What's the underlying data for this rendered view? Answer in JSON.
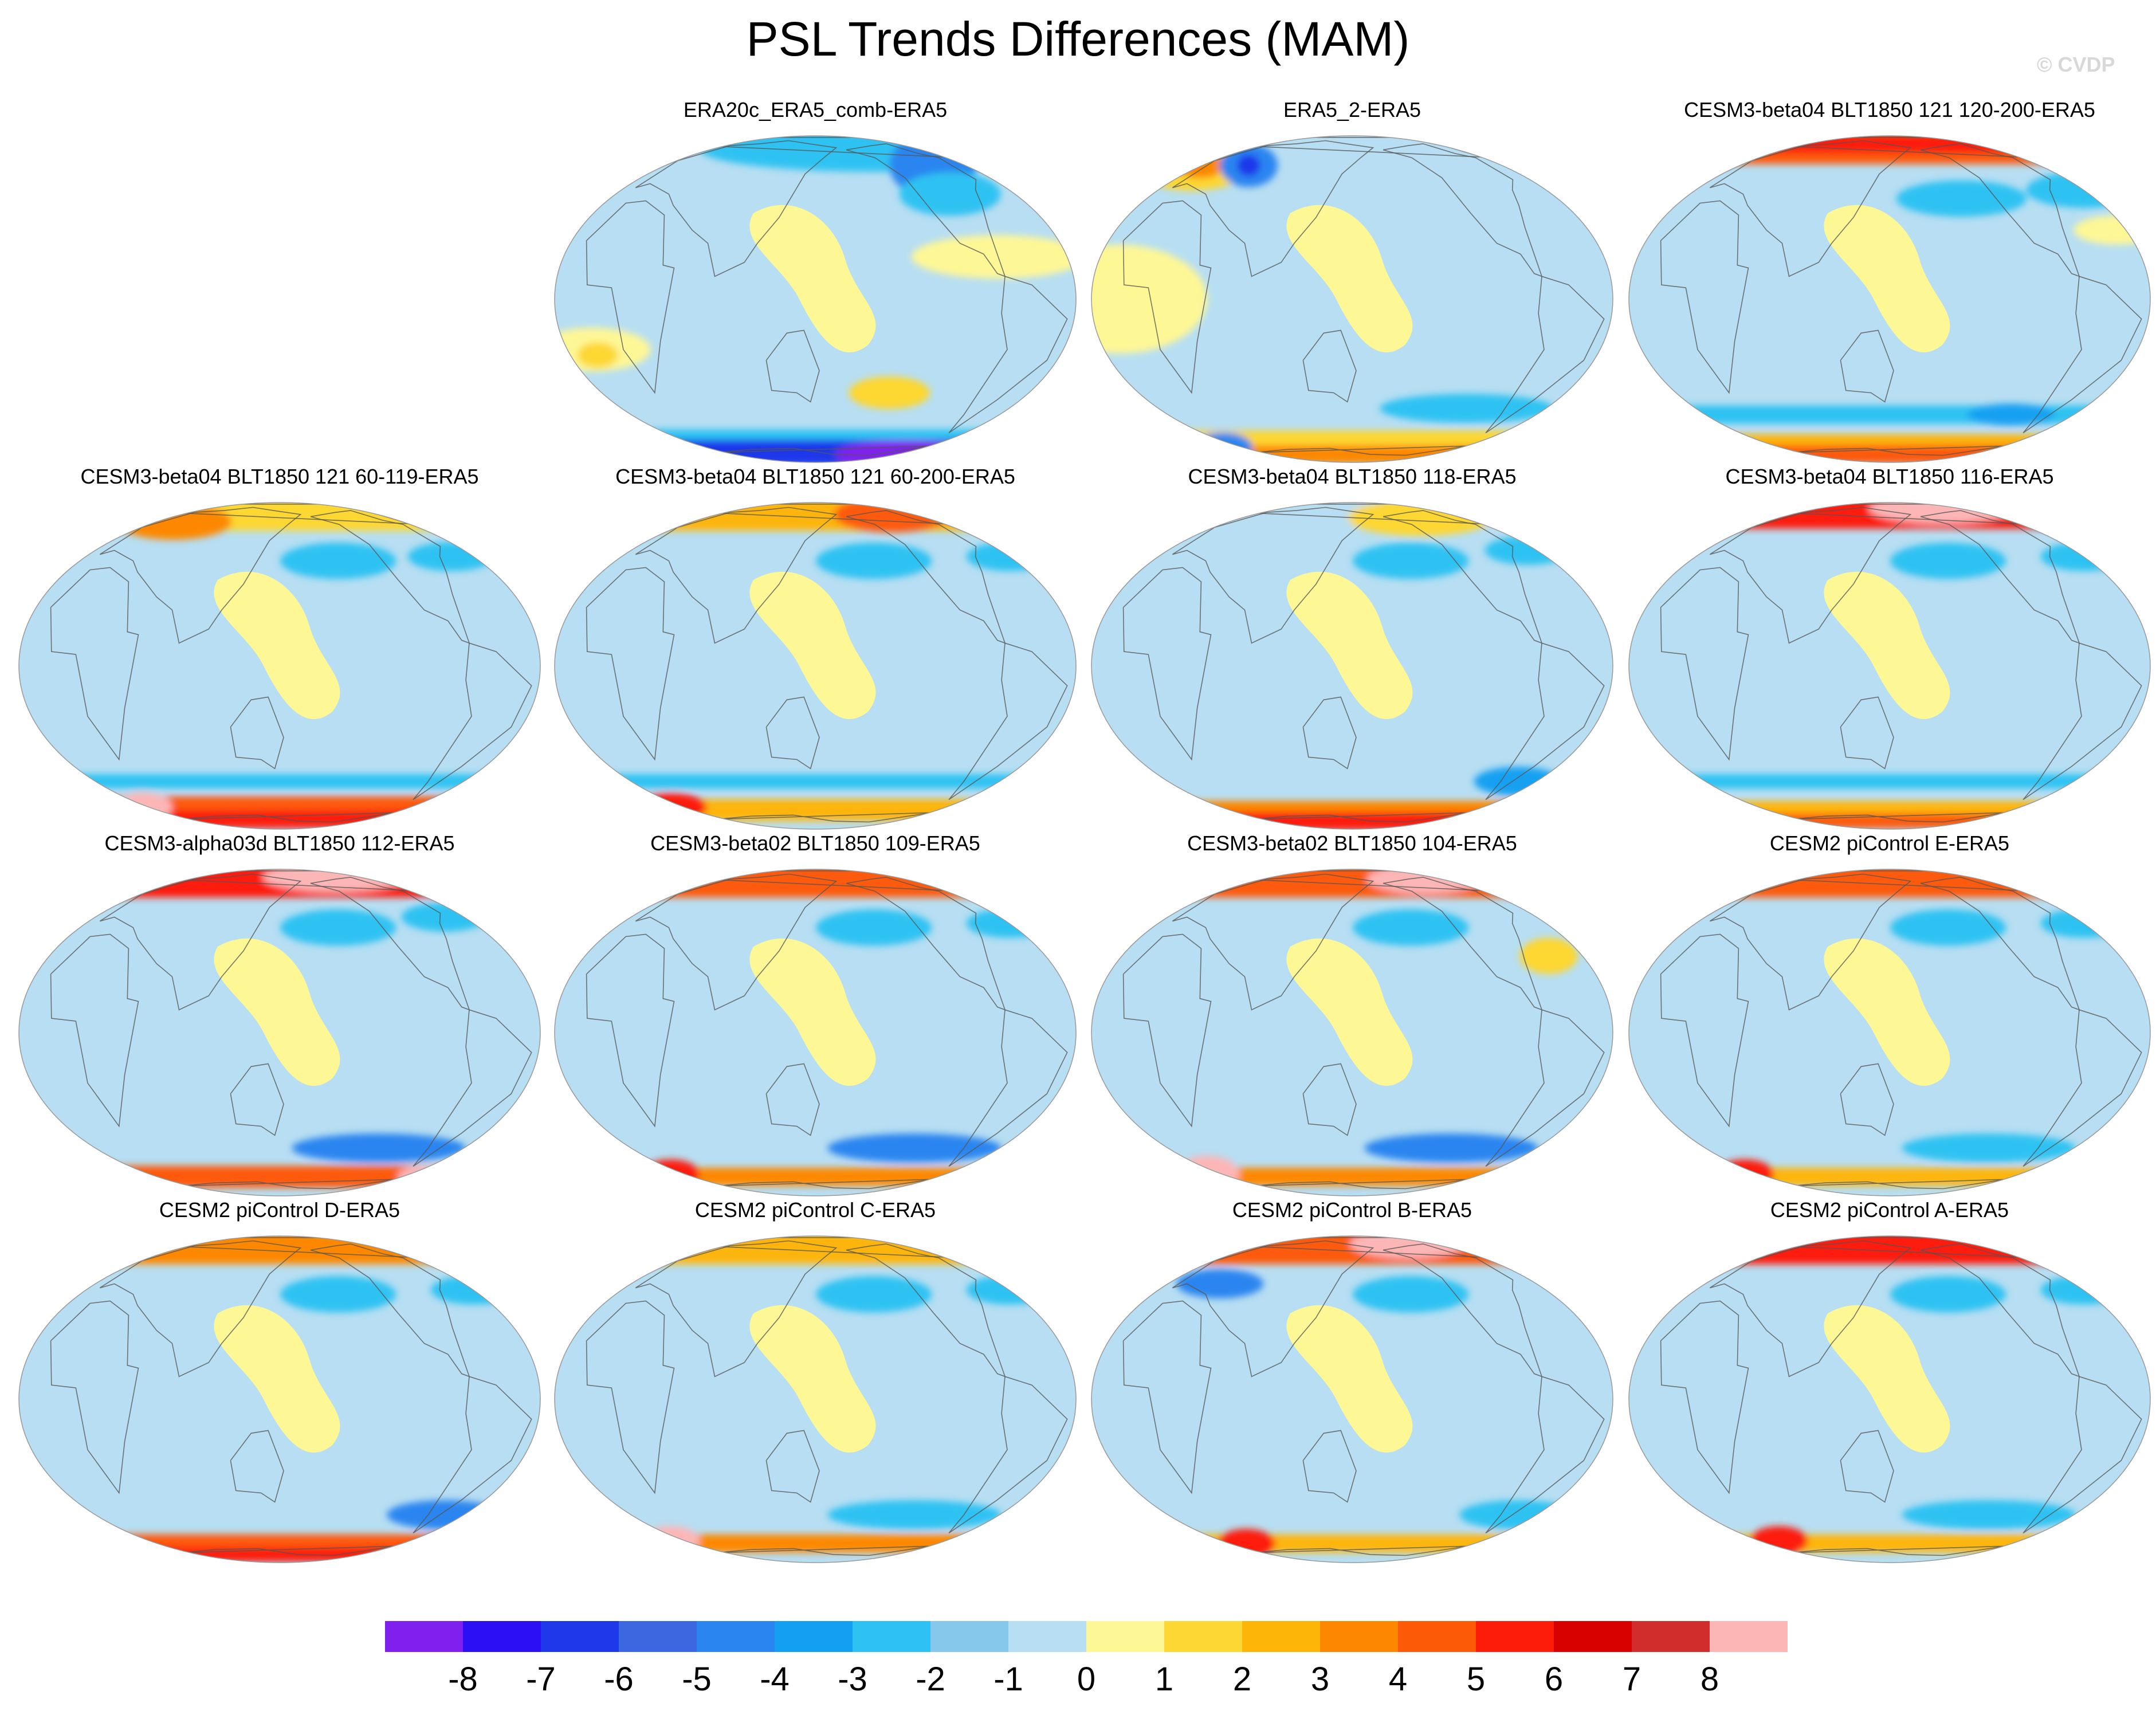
{
  "title": "PSL Trends Differences (MAM)",
  "watermark": "© CVDP",
  "colorbar": {
    "colors": [
      "#7f20ee",
      "#2b0ff5",
      "#1f38ea",
      "#3b67e1",
      "#2a85f0",
      "#14a0f2",
      "#2ec2f2",
      "#86c8ec",
      "#b7def2",
      "#fef795",
      "#fdd733",
      "#fdb508",
      "#fd8800",
      "#fd5a07",
      "#fd1c0a",
      "#d90000",
      "#d22d2d",
      "#fdb6b6"
    ],
    "labels": [
      "-8",
      "-7",
      "-6",
      "-5",
      "-4",
      "-3",
      "-2",
      "-1",
      "0",
      "1",
      "2",
      "3",
      "4",
      "5",
      "6",
      "7",
      "8"
    ]
  },
  "panels": [
    {
      "title": "ERA20c_ERA5_comb-ERA5",
      "features": [
        {
          "kind": "blob",
          "lon": -130,
          "lat": 66,
          "rx": 120,
          "ry": 12,
          "color": "#2ec2f2"
        },
        {
          "kind": "blob",
          "lon": -85,
          "lat": 55,
          "rx": 30,
          "ry": 18,
          "color": "#2a85f0"
        },
        {
          "kind": "blob",
          "lon": -95,
          "lat": 40,
          "rx": 35,
          "ry": 12,
          "color": "#2ec2f2"
        },
        {
          "kind": "blob",
          "lon": -80,
          "lat": 15,
          "rx": 60,
          "ry": 12,
          "color": "#fef795"
        },
        {
          "kind": "blob",
          "lon": -10,
          "lat": -18,
          "rx": 40,
          "ry": 12,
          "color": "#fef795"
        },
        {
          "kind": "blob",
          "lon": -8,
          "lat": -20,
          "rx": 14,
          "ry": 7,
          "color": "#fdd733"
        },
        {
          "kind": "blob",
          "lon": -150,
          "lat": -35,
          "rx": 28,
          "ry": 9,
          "color": "#fdd733"
        },
        {
          "kind": "band",
          "lat": -58,
          "h": 9,
          "color": "#2ec2f2"
        },
        {
          "kind": "band",
          "lat": -70,
          "h": 14,
          "color": "#1f38ea"
        },
        {
          "kind": "blob",
          "lon": -60,
          "lat": -72,
          "rx": 50,
          "ry": 8,
          "color": "#7f20ee"
        }
      ]
    },
    {
      "title": "ERA5_2-ERA5",
      "features": [
        {
          "kind": "blob",
          "lon": -20,
          "lat": 55,
          "rx": 40,
          "ry": 14,
          "color": "#fdd733"
        },
        {
          "kind": "blob",
          "lon": -15,
          "lat": 56,
          "rx": 18,
          "ry": 8,
          "color": "#fd8800"
        },
        {
          "kind": "blob",
          "lon": 40,
          "lat": 55,
          "rx": 20,
          "ry": 12,
          "color": "#2a85f0"
        },
        {
          "kind": "blob",
          "lon": 40,
          "lat": 55,
          "rx": 8,
          "ry": 6,
          "color": "#1f38ea"
        },
        {
          "kind": "blob",
          "lon": -10,
          "lat": 0,
          "rx": 60,
          "ry": 30,
          "color": "#fef795"
        },
        {
          "kind": "blob",
          "lon": -110,
          "lat": -42,
          "rx": 60,
          "ry": 8,
          "color": "#2ec2f2"
        },
        {
          "kind": "band",
          "lat": -62,
          "h": 14,
          "color": "#fdd733"
        },
        {
          "kind": "band",
          "lat": -72,
          "h": 10,
          "color": "#fd8800"
        },
        {
          "kind": "blob",
          "lon": -20,
          "lat": -65,
          "rx": 20,
          "ry": 8,
          "color": "#2a85f0"
        }
      ]
    },
    {
      "title": "CESM3-beta04 BLT1850 121 120-200-ERA5",
      "features": [
        {
          "kind": "band",
          "lat": 68,
          "h": 18,
          "color": "#fd5a07"
        },
        {
          "kind": "band",
          "lat": 72,
          "h": 10,
          "color": "#fd1c0a"
        },
        {
          "kind": "blob",
          "lon": -150,
          "lat": 38,
          "rx": 45,
          "ry": 10,
          "color": "#2ec2f2"
        },
        {
          "kind": "blob",
          "lon": -40,
          "lat": 42,
          "rx": 40,
          "ry": 10,
          "color": "#2ec2f2"
        },
        {
          "kind": "blob",
          "lon": -40,
          "lat": 25,
          "rx": 30,
          "ry": 8,
          "color": "#fef795"
        },
        {
          "kind": "band",
          "lat": -45,
          "h": 10,
          "color": "#2ec2f2"
        },
        {
          "kind": "blob",
          "lon": -100,
          "lat": -45,
          "rx": 30,
          "ry": 6,
          "color": "#14a0f2"
        },
        {
          "kind": "band",
          "lat": -62,
          "h": 10,
          "color": "#fdb508"
        },
        {
          "kind": "band",
          "lat": -72,
          "h": 10,
          "color": "#fd5a07"
        }
      ]
    },
    {
      "title": "CESM3-beta04 BLT1850 121 60-119-ERA5",
      "features": [
        {
          "kind": "band",
          "lat": 68,
          "h": 18,
          "color": "#fdd733"
        },
        {
          "kind": "blob",
          "lon": 20,
          "lat": 62,
          "rx": 40,
          "ry": 10,
          "color": "#fd8800"
        },
        {
          "kind": "blob",
          "lon": -160,
          "lat": 40,
          "rx": 40,
          "ry": 10,
          "color": "#2ec2f2"
        },
        {
          "kind": "blob",
          "lon": -60,
          "lat": 42,
          "rx": 30,
          "ry": 8,
          "color": "#2ec2f2"
        },
        {
          "kind": "band",
          "lat": -45,
          "h": 8,
          "color": "#2ec2f2"
        },
        {
          "kind": "band",
          "lat": -60,
          "h": 12,
          "color": "#fd5a07"
        },
        {
          "kind": "band",
          "lat": -70,
          "h": 10,
          "color": "#fd1c0a"
        },
        {
          "kind": "blob",
          "lon": -10,
          "lat": -60,
          "rx": 20,
          "ry": 8,
          "color": "#fdb6b6"
        }
      ]
    },
    {
      "title": "CESM3-beta04 BLT1850 121 60-200-ERA5",
      "features": [
        {
          "kind": "band",
          "lat": 68,
          "h": 18,
          "color": "#fdb508"
        },
        {
          "kind": "blob",
          "lon": -100,
          "lat": 68,
          "rx": 40,
          "ry": 10,
          "color": "#fd5a07"
        },
        {
          "kind": "blob",
          "lon": -160,
          "lat": 40,
          "rx": 40,
          "ry": 10,
          "color": "#2ec2f2"
        },
        {
          "kind": "blob",
          "lon": -40,
          "lat": 42,
          "rx": 30,
          "ry": 8,
          "color": "#2ec2f2"
        },
        {
          "kind": "band",
          "lat": -45,
          "h": 8,
          "color": "#2ec2f2"
        },
        {
          "kind": "band",
          "lat": -62,
          "h": 12,
          "color": "#fdb508"
        },
        {
          "kind": "blob",
          "lon": -20,
          "lat": -60,
          "rx": 25,
          "ry": 8,
          "color": "#fd1c0a"
        }
      ]
    },
    {
      "title": "CESM3-beta04 BLT1850 118-ERA5",
      "features": [
        {
          "kind": "band",
          "lat": 68,
          "h": 14,
          "color": "#b7def2"
        },
        {
          "kind": "blob",
          "lon": -120,
          "lat": 65,
          "rx": 50,
          "ry": 10,
          "color": "#fdd733"
        },
        {
          "kind": "blob",
          "lon": -160,
          "lat": 40,
          "rx": 40,
          "ry": 10,
          "color": "#2ec2f2"
        },
        {
          "kind": "blob",
          "lon": -50,
          "lat": 45,
          "rx": 30,
          "ry": 8,
          "color": "#2ec2f2"
        },
        {
          "kind": "blob",
          "lon": -60,
          "lat": -45,
          "rx": 30,
          "ry": 8,
          "color": "#14a0f2"
        },
        {
          "kind": "band",
          "lat": -62,
          "h": 10,
          "color": "#fd8800"
        },
        {
          "kind": "band",
          "lat": -72,
          "h": 10,
          "color": "#fd1c0a"
        }
      ]
    },
    {
      "title": "CESM3-beta04 BLT1850 116-ERA5",
      "features": [
        {
          "kind": "band",
          "lat": 70,
          "h": 18,
          "color": "#fd1c0a"
        },
        {
          "kind": "blob",
          "lon": -120,
          "lat": 74,
          "rx": 50,
          "ry": 8,
          "color": "#fdb6b6"
        },
        {
          "kind": "blob",
          "lon": -160,
          "lat": 40,
          "rx": 40,
          "ry": 10,
          "color": "#2ec2f2"
        },
        {
          "kind": "blob",
          "lon": -40,
          "lat": 42,
          "rx": 30,
          "ry": 8,
          "color": "#2ec2f2"
        },
        {
          "kind": "band",
          "lat": -45,
          "h": 8,
          "color": "#2ec2f2"
        },
        {
          "kind": "band",
          "lat": -62,
          "h": 10,
          "color": "#fdb508"
        },
        {
          "kind": "band",
          "lat": -72,
          "h": 8,
          "color": "#fd5a07"
        }
      ]
    },
    {
      "title": "CESM3-alpha03d BLT1850 112-ERA5",
      "features": [
        {
          "kind": "band",
          "lat": 68,
          "h": 18,
          "color": "#fd1c0a"
        },
        {
          "kind": "blob",
          "lon": -120,
          "lat": 72,
          "rx": 50,
          "ry": 8,
          "color": "#fdb6b6"
        },
        {
          "kind": "blob",
          "lon": -160,
          "lat": 40,
          "rx": 40,
          "ry": 10,
          "color": "#2ec2f2"
        },
        {
          "kind": "blob",
          "lon": -60,
          "lat": 45,
          "rx": 30,
          "ry": 8,
          "color": "#2ec2f2"
        },
        {
          "kind": "blob",
          "lon": -120,
          "lat": -45,
          "rx": 60,
          "ry": 8,
          "color": "#2a85f0"
        },
        {
          "kind": "band",
          "lat": -62,
          "h": 12,
          "color": "#fd5a07"
        },
        {
          "kind": "blob",
          "lon": -30,
          "lat": -62,
          "rx": 20,
          "ry": 6,
          "color": "#fdb6b6"
        }
      ]
    },
    {
      "title": "CESM3-beta02 BLT1850 109-ERA5",
      "features": [
        {
          "kind": "band",
          "lat": 68,
          "h": 18,
          "color": "#fd5a07"
        },
        {
          "kind": "blob",
          "lon": -160,
          "lat": 40,
          "rx": 40,
          "ry": 10,
          "color": "#2ec2f2"
        },
        {
          "kind": "blob",
          "lon": -40,
          "lat": 42,
          "rx": 30,
          "ry": 8,
          "color": "#2ec2f2"
        },
        {
          "kind": "blob",
          "lon": -120,
          "lat": -45,
          "rx": 60,
          "ry": 8,
          "color": "#2a85f0"
        },
        {
          "kind": "band",
          "lat": -62,
          "h": 10,
          "color": "#fd8800"
        },
        {
          "kind": "blob",
          "lon": -20,
          "lat": -60,
          "rx": 20,
          "ry": 8,
          "color": "#fd1c0a"
        }
      ]
    },
    {
      "title": "CESM3-beta02 BLT1850 104-ERA5",
      "features": [
        {
          "kind": "band",
          "lat": 68,
          "h": 18,
          "color": "#fd5a07"
        },
        {
          "kind": "blob",
          "lon": -100,
          "lat": 70,
          "rx": 40,
          "ry": 8,
          "color": "#fdb6b6"
        },
        {
          "kind": "blob",
          "lon": -160,
          "lat": 40,
          "rx": 40,
          "ry": 10,
          "color": "#2ec2f2"
        },
        {
          "kind": "blob",
          "lon": -60,
          "lat": 28,
          "rx": 20,
          "ry": 10,
          "color": "#fdd733"
        },
        {
          "kind": "blob",
          "lon": -120,
          "lat": -45,
          "rx": 60,
          "ry": 8,
          "color": "#2a85f0"
        },
        {
          "kind": "band",
          "lat": -62,
          "h": 10,
          "color": "#fd8800"
        },
        {
          "kind": "blob",
          "lon": -20,
          "lat": -60,
          "rx": 22,
          "ry": 10,
          "color": "#fdb6b6"
        }
      ]
    },
    {
      "title": "CESM2 piControl E-ERA5",
      "features": [
        {
          "kind": "band",
          "lat": 68,
          "h": 18,
          "color": "#fd5a07"
        },
        {
          "kind": "blob",
          "lon": -160,
          "lat": 40,
          "rx": 40,
          "ry": 10,
          "color": "#2ec2f2"
        },
        {
          "kind": "blob",
          "lon": -40,
          "lat": 42,
          "rx": 30,
          "ry": 8,
          "color": "#2ec2f2"
        },
        {
          "kind": "blob",
          "lon": -120,
          "lat": -45,
          "rx": 60,
          "ry": 8,
          "color": "#2ec2f2"
        },
        {
          "kind": "band",
          "lat": -62,
          "h": 10,
          "color": "#fdb508"
        },
        {
          "kind": "blob",
          "lon": -20,
          "lat": -60,
          "rx": 20,
          "ry": 8,
          "color": "#fd1c0a"
        }
      ]
    },
    {
      "title": "CESM2 piControl D-ERA5",
      "features": [
        {
          "kind": "band",
          "lat": 68,
          "h": 18,
          "color": "#fd8800"
        },
        {
          "kind": "blob",
          "lon": -160,
          "lat": 40,
          "rx": 40,
          "ry": 10,
          "color": "#2ec2f2"
        },
        {
          "kind": "blob",
          "lon": -40,
          "lat": 42,
          "rx": 30,
          "ry": 8,
          "color": "#2ec2f2"
        },
        {
          "kind": "blob",
          "lon": -60,
          "lat": -45,
          "rx": 40,
          "ry": 8,
          "color": "#2a85f0"
        },
        {
          "kind": "band",
          "lat": -62,
          "h": 10,
          "color": "#fd5a07"
        },
        {
          "kind": "band",
          "lat": -72,
          "h": 8,
          "color": "#fd1c0a"
        }
      ]
    },
    {
      "title": "CESM2 piControl C-ERA5",
      "features": [
        {
          "kind": "band",
          "lat": 68,
          "h": 18,
          "color": "#fdb508"
        },
        {
          "kind": "blob",
          "lon": -160,
          "lat": 40,
          "rx": 40,
          "ry": 10,
          "color": "#2ec2f2"
        },
        {
          "kind": "blob",
          "lon": -40,
          "lat": 42,
          "rx": 30,
          "ry": 8,
          "color": "#2ec2f2"
        },
        {
          "kind": "blob",
          "lon": -120,
          "lat": -45,
          "rx": 60,
          "ry": 8,
          "color": "#2ec2f2"
        },
        {
          "kind": "band",
          "lat": -62,
          "h": 10,
          "color": "#fd8800"
        },
        {
          "kind": "blob",
          "lon": -20,
          "lat": -60,
          "rx": 20,
          "ry": 8,
          "color": "#fdb6b6"
        }
      ]
    },
    {
      "title": "CESM2 piControl B-ERA5",
      "features": [
        {
          "kind": "band",
          "lat": 68,
          "h": 18,
          "color": "#fd5a07"
        },
        {
          "kind": "blob",
          "lon": -120,
          "lat": 72,
          "rx": 40,
          "ry": 8,
          "color": "#fdb6b6"
        },
        {
          "kind": "blob",
          "lon": -160,
          "lat": 40,
          "rx": 40,
          "ry": 10,
          "color": "#2ec2f2"
        },
        {
          "kind": "blob",
          "lon": 30,
          "lat": 45,
          "rx": 30,
          "ry": 8,
          "color": "#2a85f0"
        },
        {
          "kind": "blob",
          "lon": -60,
          "lat": -45,
          "rx": 40,
          "ry": 8,
          "color": "#2ec2f2"
        },
        {
          "kind": "band",
          "lat": -62,
          "h": 10,
          "color": "#fdb508"
        },
        {
          "kind": "blob",
          "lon": 20,
          "lat": -62,
          "rx": 20,
          "ry": 8,
          "color": "#fd1c0a"
        }
      ]
    },
    {
      "title": "CESM2 piControl A-ERA5",
      "features": [
        {
          "kind": "band",
          "lat": 68,
          "h": 18,
          "color": "#fd1c0a"
        },
        {
          "kind": "blob",
          "lon": -160,
          "lat": 40,
          "rx": 40,
          "ry": 10,
          "color": "#2ec2f2"
        },
        {
          "kind": "blob",
          "lon": -40,
          "lat": 42,
          "rx": 30,
          "ry": 8,
          "color": "#2ec2f2"
        },
        {
          "kind": "blob",
          "lon": -120,
          "lat": -45,
          "rx": 60,
          "ry": 8,
          "color": "#2ec2f2"
        },
        {
          "kind": "band",
          "lat": -62,
          "h": 10,
          "color": "#fdb508"
        },
        {
          "kind": "blob",
          "lon": 20,
          "lat": -60,
          "rx": 20,
          "ry": 8,
          "color": "#fd1c0a"
        }
      ]
    }
  ]
}
